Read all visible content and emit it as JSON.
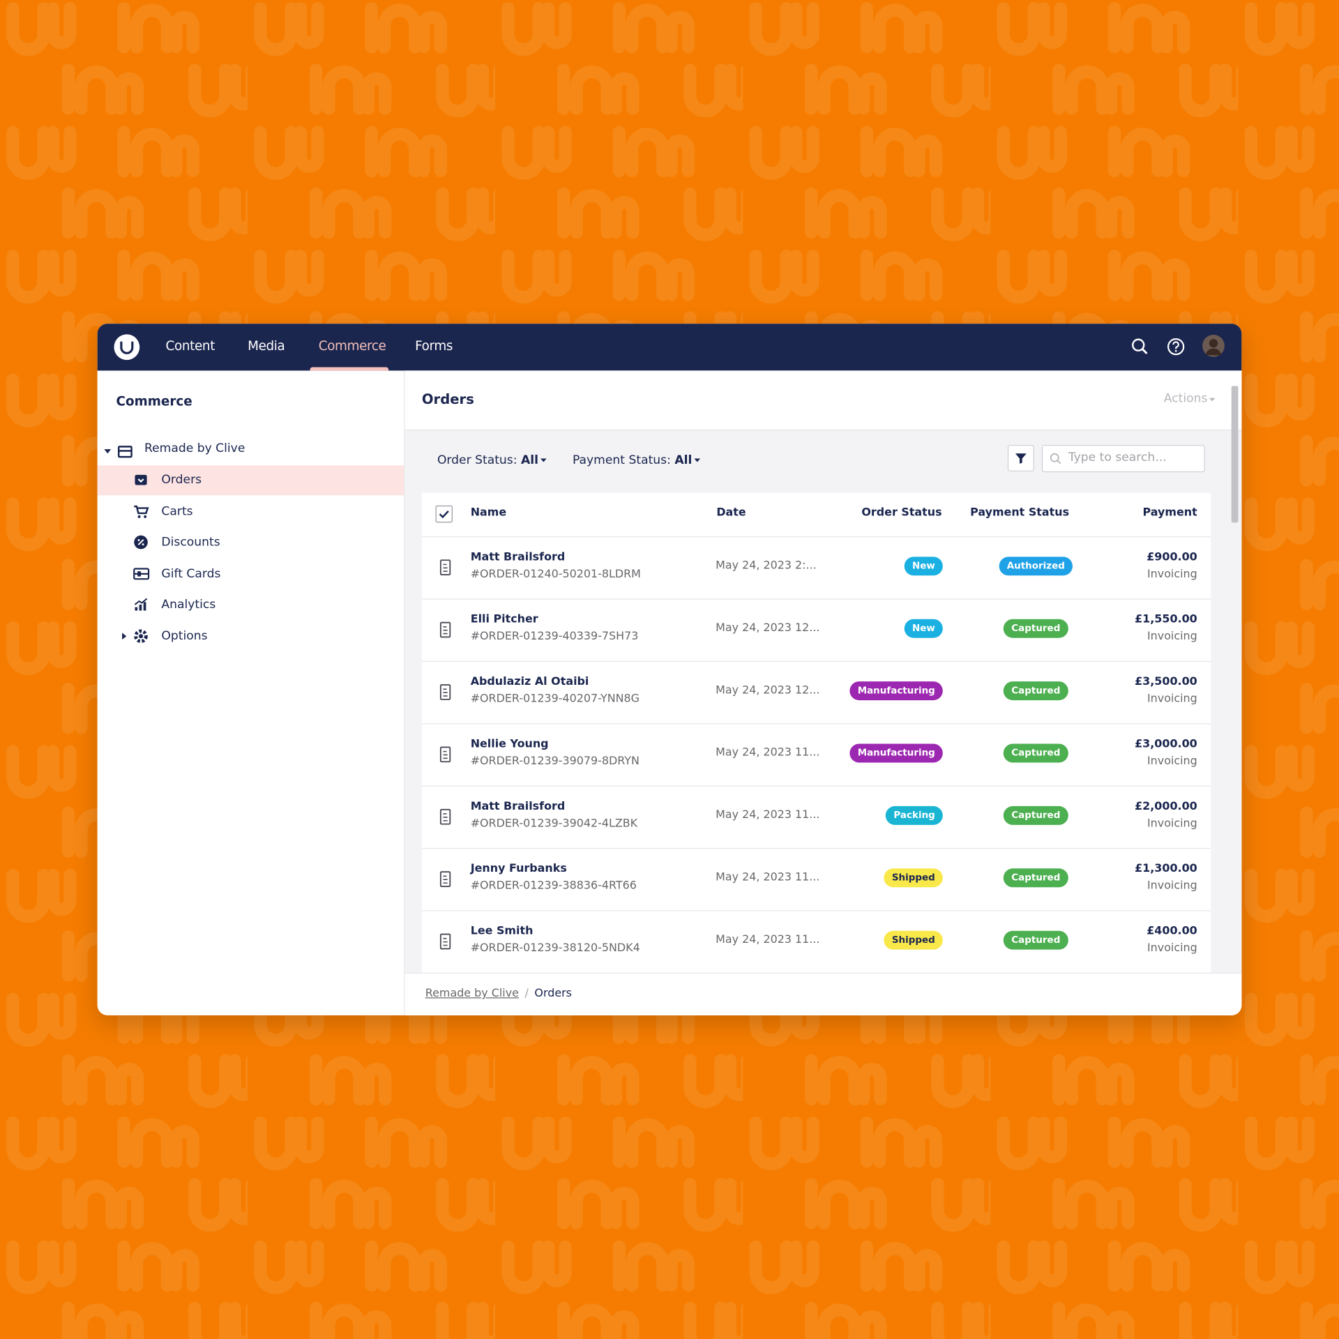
{
  "navbar": {
    "items": [
      "Content",
      "Media",
      "Commerce",
      "Forms"
    ],
    "active": 2
  },
  "sidebar": {
    "title": "Commerce",
    "root": "Remade by Clive",
    "items": [
      "Orders",
      "Carts",
      "Discounts",
      "Gift Cards",
      "Analytics",
      "Options"
    ],
    "active": 0
  },
  "content": {
    "title": "Orders",
    "actions": "Actions",
    "filters": [
      {
        "label": "Order Status:",
        "value": "All"
      },
      {
        "label": "Payment Status:",
        "value": "All"
      }
    ],
    "search_placeholder": "Type to search...",
    "table": {
      "columns": [
        "Name",
        "Date",
        "Order Status",
        "Payment Status",
        "Payment"
      ],
      "rows": [
        {
          "name": "Matt Brailsford",
          "order_number": "#ORDER-01240-50201-8LDRM",
          "date": "May 24, 2023 2:...",
          "order_status": {
            "label": "New",
            "color": "#1ab0e2"
          },
          "payment_status": {
            "label": "Authorized",
            "color": "#1ea1e6"
          },
          "amount": "£900.00",
          "method": "Invoicing"
        },
        {
          "name": "Elli Pitcher",
          "order_number": "#ORDER-01239-40339-7SH73",
          "date": "May 24, 2023 12...",
          "order_status": {
            "label": "New",
            "color": "#1ab0e2"
          },
          "payment_status": {
            "label": "Captured",
            "color": "#4caf50"
          },
          "amount": "£1,550.00",
          "method": "Invoicing"
        },
        {
          "name": "Abdulaziz Al Otaibi",
          "order_number": "#ORDER-01239-40207-YNN8G",
          "date": "May 24, 2023 12...",
          "order_status": {
            "label": "Manufacturing",
            "color": "#9c27b0"
          },
          "payment_status": {
            "label": "Captured",
            "color": "#4caf50"
          },
          "amount": "£3,500.00",
          "method": "Invoicing"
        },
        {
          "name": "Nellie Young",
          "order_number": "#ORDER-01239-39079-8DRYN",
          "date": "May 24, 2023 11...",
          "order_status": {
            "label": "Manufacturing",
            "color": "#9c27b0"
          },
          "payment_status": {
            "label": "Captured",
            "color": "#4caf50"
          },
          "amount": "£3,000.00",
          "method": "Invoicing"
        },
        {
          "name": "Matt Brailsford",
          "order_number": "#ORDER-01239-39042-4LZBK",
          "date": "May 24, 2023 11...",
          "order_status": {
            "label": "Packing",
            "color": "#19b5d3"
          },
          "payment_status": {
            "label": "Captured",
            "color": "#4caf50"
          },
          "amount": "£2,000.00",
          "method": "Invoicing"
        },
        {
          "name": "Jenny Furbanks",
          "order_number": "#ORDER-01239-38836-4RT66",
          "date": "May 24, 2023 11...",
          "order_status": {
            "label": "Shipped",
            "color": "#f9e84a"
          },
          "payment_status": {
            "label": "Captured",
            "color": "#4caf50"
          },
          "amount": "£1,300.00",
          "method": "Invoicing"
        },
        {
          "name": "Lee Smith",
          "order_number": "#ORDER-01239-38120-5NDK4",
          "date": "May 24, 2023 11...",
          "order_status": {
            "label": "Shipped",
            "color": "#f9e84a"
          },
          "payment_status": {
            "label": "Captured",
            "color": "#4caf50"
          },
          "amount": "£400.00",
          "method": "Invoicing"
        }
      ]
    }
  },
  "breadcrumb": [
    "Remade by Clive",
    "Orders"
  ]
}
